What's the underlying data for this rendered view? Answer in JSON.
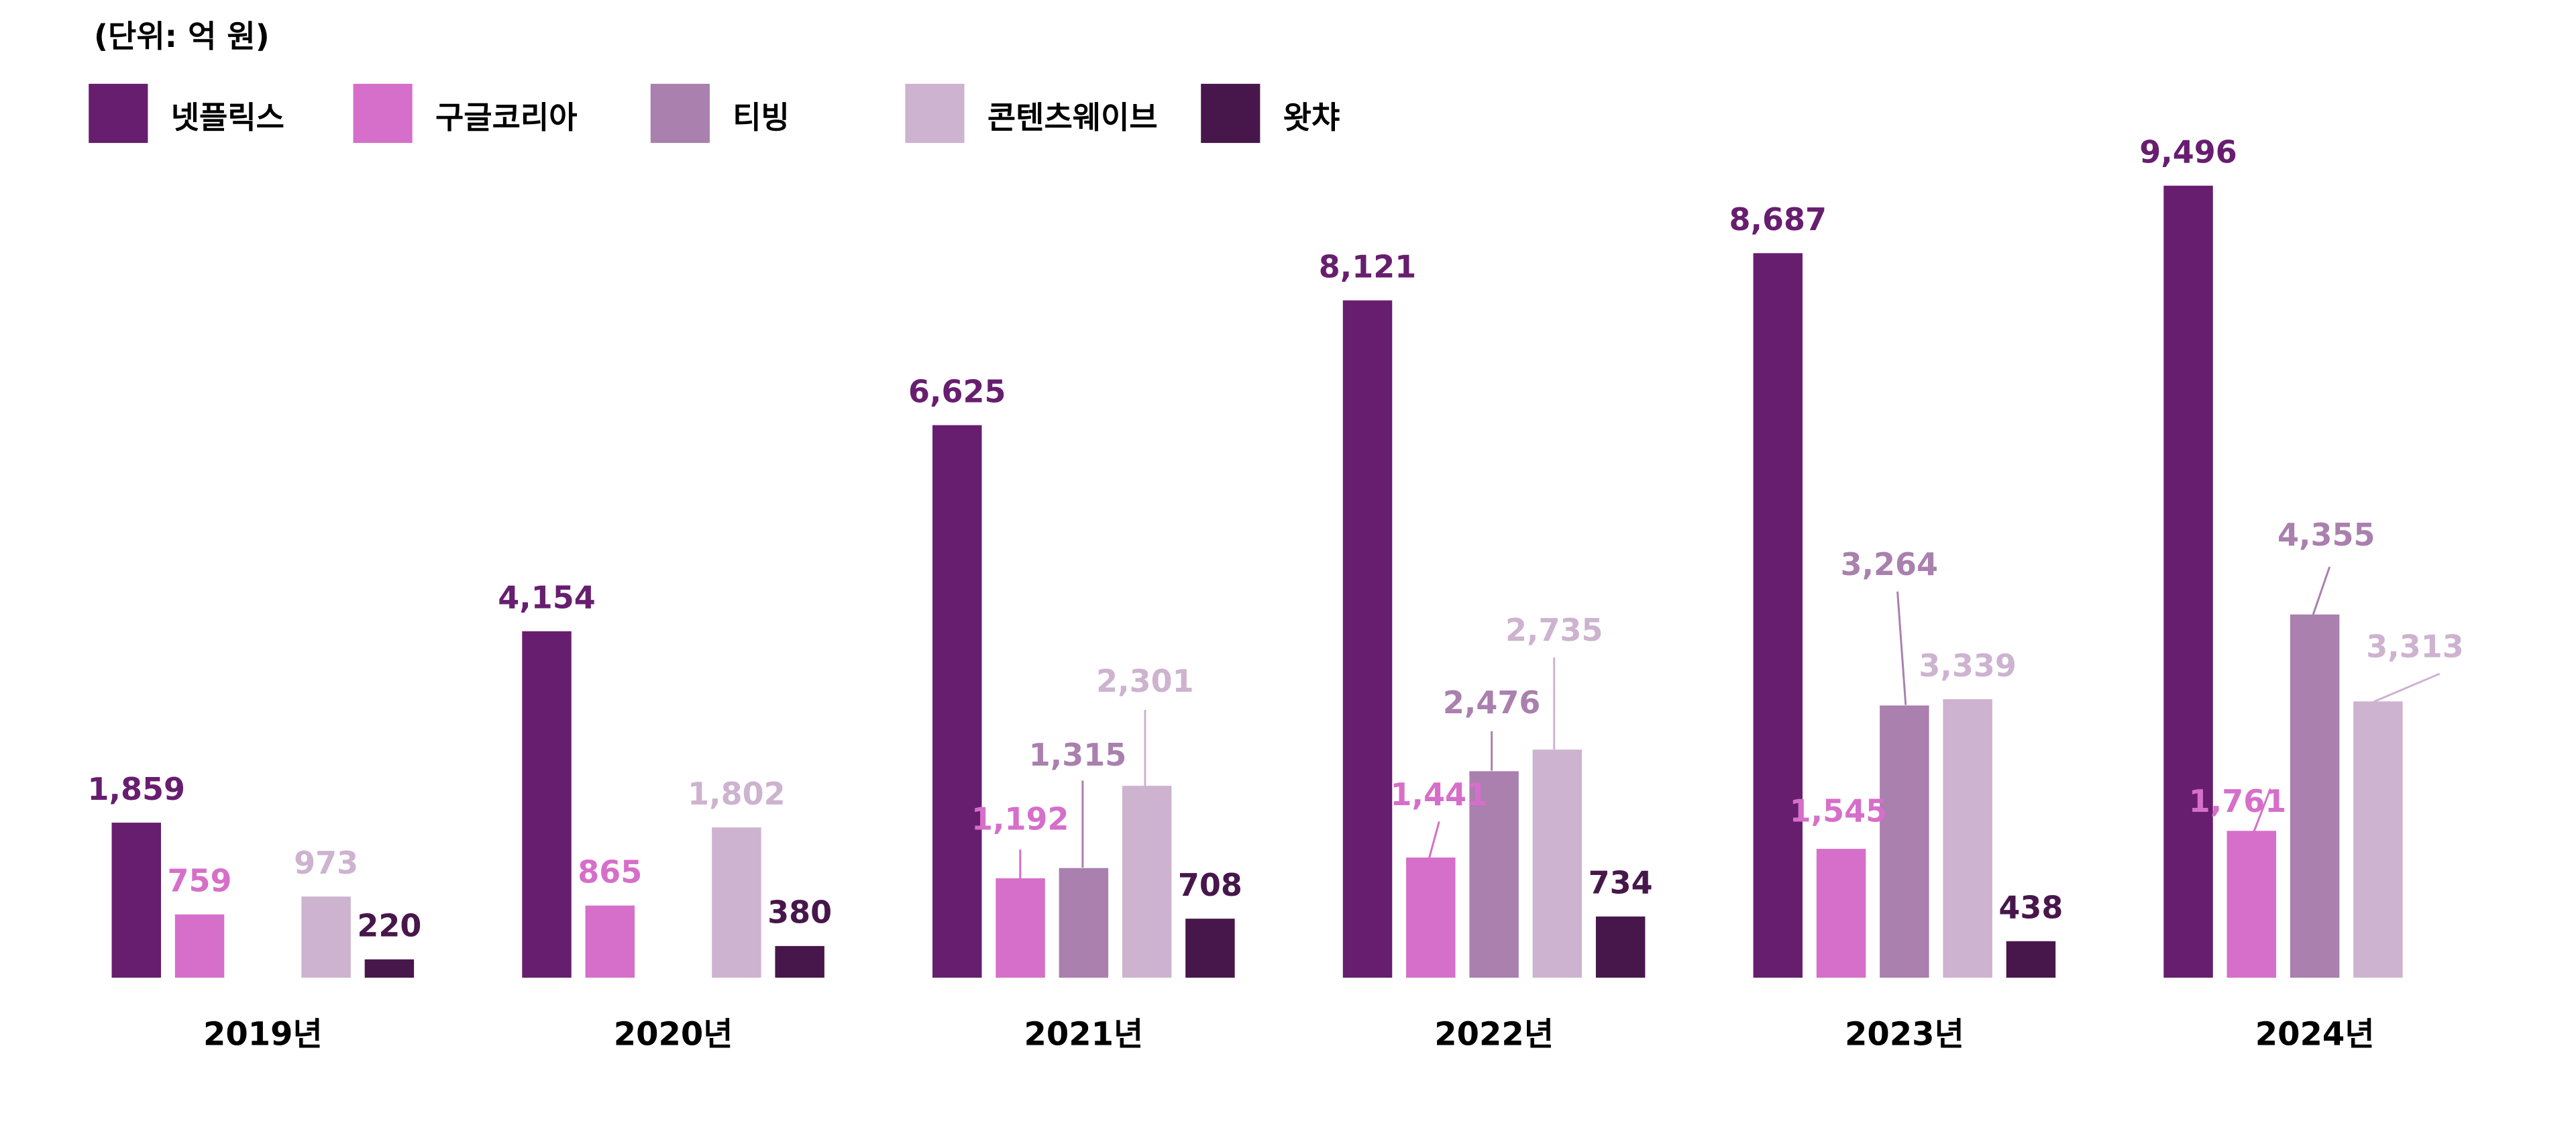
{
  "chart_data": {
    "type": "bar",
    "unit_label": "(단위: 억 원)",
    "categories": [
      "2019년",
      "2020년",
      "2021년",
      "2022년",
      "2023년",
      "2024년"
    ],
    "series": [
      {
        "name": "넷플릭스",
        "color": "#671e6f",
        "values": [
          1859,
          4154,
          6625,
          8121,
          8687,
          9496
        ]
      },
      {
        "name": "구글코리아",
        "color": "#d66fc9",
        "values": [
          759,
          865,
          1192,
          1441,
          1545,
          1761
        ]
      },
      {
        "name": "티빙",
        "color": "#a980ae",
        "values": [
          null,
          null,
          1315,
          2476,
          3264,
          4355
        ]
      },
      {
        "name": "콘텐츠웨이브",
        "color": "#cdb3cf",
        "values": [
          973,
          1802,
          2301,
          2735,
          3339,
          3313
        ]
      },
      {
        "name": "왓챠",
        "color": "#47174b",
        "values": [
          220,
          380,
          708,
          734,
          438,
          null
        ]
      }
    ],
    "value_format": "thousands-comma",
    "legend_position": "top-left",
    "grid": false,
    "ylim": [
      0,
      9496
    ]
  }
}
